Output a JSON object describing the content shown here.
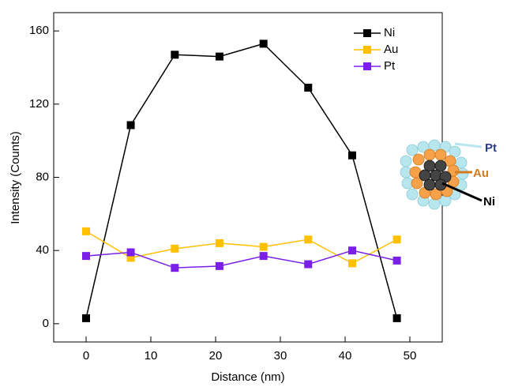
{
  "chart_data": {
    "type": "line",
    "x_label": "Distance (nm)",
    "y_label": "Intensity (Counts)",
    "x": [
      0,
      6.9,
      13.7,
      20.6,
      27.4,
      34.3,
      41.1,
      48
    ],
    "series": [
      {
        "name": "Ni",
        "color": "#000000",
        "values": [
          3,
          108.5,
          147,
          146,
          153,
          129,
          92,
          3
        ]
      },
      {
        "name": "Au",
        "color": "#ffc000",
        "values": [
          50.5,
          36,
          41,
          44,
          42,
          46,
          33,
          46
        ]
      },
      {
        "name": "Pt",
        "color": "#7a1fe8",
        "values": [
          37,
          39,
          30.5,
          31.5,
          37,
          32.5,
          40,
          34.5
        ]
      }
    ],
    "xlim": [
      -5,
      55
    ],
    "ylim": [
      -10,
      170
    ],
    "xticks": [
      0,
      10,
      20,
      30,
      40,
      50
    ],
    "yticks": [
      0,
      40,
      80,
      120,
      160
    ],
    "legend": "upper right",
    "annotations": [
      "Pt",
      "Au",
      "Ni"
    ]
  }
}
